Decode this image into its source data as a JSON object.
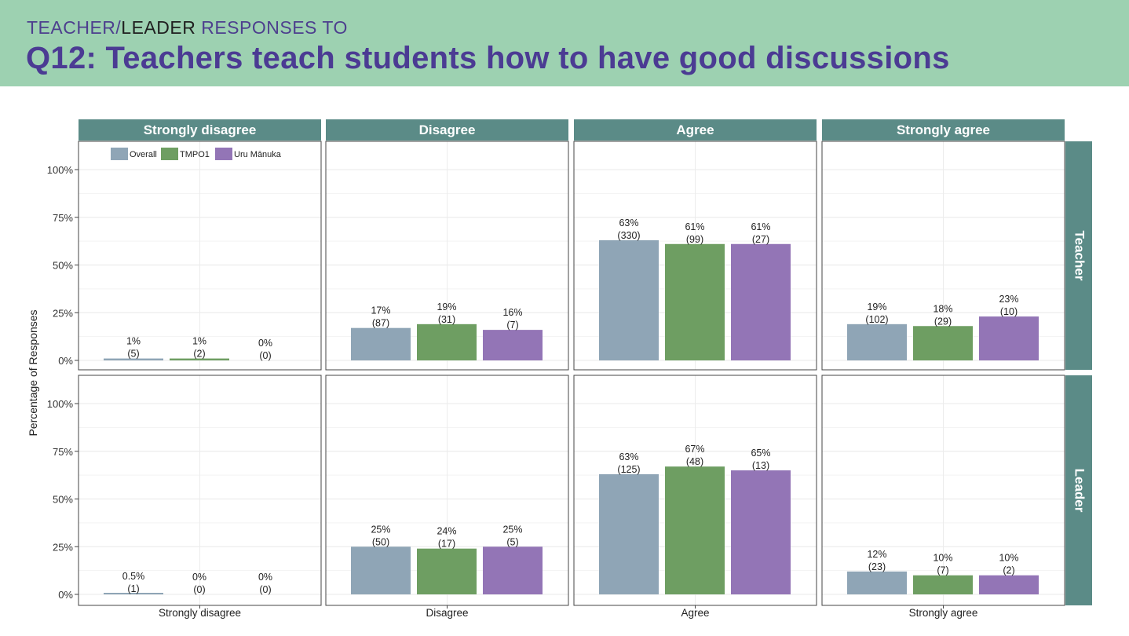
{
  "header": {
    "kicker_teacher": "TEACHER/",
    "kicker_leader": "LEADER",
    "kicker_rest": " RESPONSES TO",
    "title": "Q12: Teachers teach students how to have good discussions"
  },
  "colors": {
    "banner": "#9dd1b1",
    "title": "#4b3b93",
    "strip": "#5b8b87",
    "Overall": "#8fa5b6",
    "TMPO1": "#6e9e62",
    "Uru Mānuka": "#9375b6"
  },
  "chart_data": {
    "type": "bar",
    "ylabel": "Percentage of Responses",
    "ylim": [
      0,
      1.1
    ],
    "yticks": [
      "0%",
      "25%",
      "50%",
      "75%",
      "100%"
    ],
    "ytick_values": [
      0,
      0.25,
      0.5,
      0.75,
      1.0
    ],
    "grid": true,
    "legend_position": "top-left",
    "columns": [
      "Strongly disagree",
      "Disagree",
      "Agree",
      "Strongly agree"
    ],
    "rows": [
      "Teacher",
      "Leader"
    ],
    "series_names": [
      "Overall",
      "TMPO1",
      "Uru Mānuka"
    ],
    "panels": [
      {
        "row": "Teacher",
        "col": "Strongly disagree",
        "values": [
          0.01,
          0.01,
          0.0
        ],
        "pct": [
          "1%",
          "1%",
          "0%"
        ],
        "n": [
          "(5)",
          "(2)",
          "(0)"
        ]
      },
      {
        "row": "Teacher",
        "col": "Disagree",
        "values": [
          0.17,
          0.19,
          0.16
        ],
        "pct": [
          "17%",
          "19%",
          "16%"
        ],
        "n": [
          "(87)",
          "(31)",
          "(7)"
        ]
      },
      {
        "row": "Teacher",
        "col": "Agree",
        "values": [
          0.63,
          0.61,
          0.61
        ],
        "pct": [
          "63%",
          "61%",
          "61%"
        ],
        "n": [
          "(330)",
          "(99)",
          "(27)"
        ]
      },
      {
        "row": "Teacher",
        "col": "Strongly agree",
        "values": [
          0.19,
          0.18,
          0.23
        ],
        "pct": [
          "19%",
          "18%",
          "23%"
        ],
        "n": [
          "(102)",
          "(29)",
          "(10)"
        ]
      },
      {
        "row": "Leader",
        "col": "Strongly disagree",
        "values": [
          0.005,
          0.0,
          0.0
        ],
        "pct": [
          "0.5%",
          "0%",
          "0%"
        ],
        "n": [
          "(1)",
          "(0)",
          "(0)"
        ]
      },
      {
        "row": "Leader",
        "col": "Disagree",
        "values": [
          0.25,
          0.24,
          0.25
        ],
        "pct": [
          "25%",
          "24%",
          "25%"
        ],
        "n": [
          "(50)",
          "(17)",
          "(5)"
        ]
      },
      {
        "row": "Leader",
        "col": "Agree",
        "values": [
          0.63,
          0.67,
          0.65
        ],
        "pct": [
          "63%",
          "67%",
          "65%"
        ],
        "n": [
          "(125)",
          "(48)",
          "(13)"
        ]
      },
      {
        "row": "Leader",
        "col": "Strongly agree",
        "values": [
          0.12,
          0.1,
          0.1
        ],
        "pct": [
          "12%",
          "10%",
          "10%"
        ],
        "n": [
          "(23)",
          "(7)",
          "(2)"
        ]
      }
    ]
  }
}
